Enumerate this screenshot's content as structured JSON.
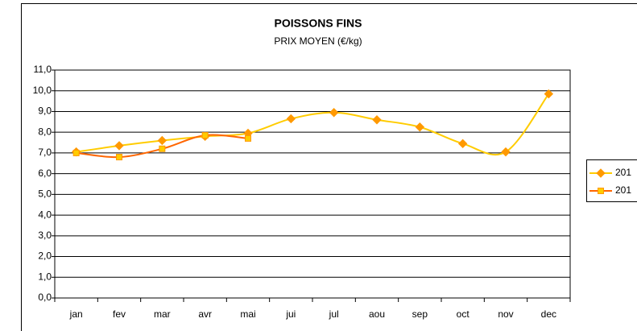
{
  "chart_data": {
    "type": "line",
    "title": "POISSONS FINS",
    "subtitle": "PRIX MOYEN (€/kg)",
    "categories": [
      "jan",
      "fev",
      "mar",
      "avr",
      "mai",
      "jui",
      "jul",
      "aou",
      "sep",
      "oct",
      "nov",
      "dec"
    ],
    "series": [
      {
        "name": "201",
        "color": "#ffcc00",
        "marker_color": "#ff9900",
        "marker": "diamond",
        "values": [
          7.05,
          7.35,
          7.6,
          7.8,
          7.95,
          8.65,
          8.95,
          8.6,
          8.25,
          7.45,
          7.05,
          9.85
        ]
      },
      {
        "name": "201",
        "color": "#ff6600",
        "marker_color": "#ffcc00",
        "marker": "square",
        "values": [
          7.0,
          6.8,
          7.2,
          7.85,
          7.7,
          null,
          null,
          null,
          null,
          null,
          null,
          null
        ]
      }
    ],
    "ylim": [
      0,
      11
    ],
    "yticks": [
      {
        "value": 0,
        "label": "0,0"
      },
      {
        "value": 1,
        "label": "1,0"
      },
      {
        "value": 2,
        "label": "2,0"
      },
      {
        "value": 3,
        "label": "3,0"
      },
      {
        "value": 4,
        "label": "4,0"
      },
      {
        "value": 5,
        "label": "5,0"
      },
      {
        "value": 6,
        "label": "6,0"
      },
      {
        "value": 7,
        "label": "7,0"
      },
      {
        "value": 8,
        "label": "8,0"
      },
      {
        "value": 9,
        "label": "9,0"
      },
      {
        "value": 10,
        "label": "10,0"
      },
      {
        "value": 11,
        "label": "11,0"
      }
    ],
    "grid": true,
    "smooth": true,
    "legend": "right"
  }
}
